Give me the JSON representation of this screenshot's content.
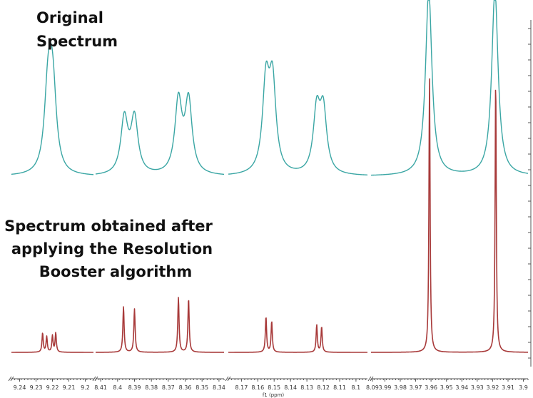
{
  "labels": {
    "original": [
      "Original",
      "Spectrum"
    ],
    "boosted": [
      "Spectrum obtained after",
      "applying the Resolution",
      "Booster algorithm"
    ]
  },
  "colors": {
    "original": "#3aa6a4",
    "boosted": "#a83a3a",
    "axis": "#555555"
  },
  "chart_data": {
    "type": "line",
    "xlabel": "f1 (ppm)",
    "x_reversed": true,
    "segments": [
      {
        "range": [
          9.245,
          9.195
        ],
        "ticks": [
          9.24,
          9.23,
          9.22,
          9.21,
          9.2
        ],
        "tick_labels": [
          "9.24",
          "9.23",
          "9.22",
          "9.21",
          "9.2"
        ]
      },
      {
        "range": [
          8.413,
          8.337
        ],
        "ticks": [
          8.41,
          8.4,
          8.39,
          8.38,
          8.37,
          8.36,
          8.35,
          8.34
        ],
        "tick_labels": [
          "8.41",
          "8.4",
          "8.39",
          "8.38",
          "8.37",
          "8.36",
          "8.35",
          "8.34"
        ]
      },
      {
        "range": [
          8.178,
          8.093
        ],
        "ticks": [
          8.17,
          8.16,
          8.15,
          8.14,
          8.13,
          8.12,
          8.11,
          8.1,
          8.09
        ],
        "tick_labels": [
          "8.17",
          "8.16",
          "8.15",
          "8.14",
          "8.13",
          "8.12",
          "8.11",
          "8.1",
          "8.09"
        ]
      },
      {
        "range": [
          3.999,
          3.897
        ],
        "ticks": [
          3.99,
          3.98,
          3.97,
          3.96,
          3.95,
          3.94,
          3.93,
          3.92,
          3.91,
          3.9
        ],
        "tick_labels": [
          "3.99",
          "3.98",
          "3.97",
          "3.96",
          "3.95",
          "3.94",
          "3.93",
          "3.92",
          "3.91",
          "3.9"
        ]
      }
    ],
    "series": [
      {
        "key": "original",
        "lorentzian_width": 0.0025,
        "segment_peaks": [
          [
            [
              9.223,
              0.62
            ],
            [
              9.2195,
              0.64
            ],
            [
              9.221,
              0.3
            ],
            [
              9.2215,
              0.3
            ]
          ],
          [
            [
              8.396,
              0.6
            ],
            [
              8.39,
              0.6
            ],
            [
              8.364,
              0.78
            ],
            [
              8.358,
              0.78
            ]
          ],
          [
            [
              8.155,
              0.95
            ],
            [
              8.151,
              0.95
            ],
            [
              8.124,
              0.66
            ],
            [
              8.12,
              0.66
            ]
          ],
          [
            [
              3.9615,
              2.0
            ],
            [
              3.9185,
              2.0
            ]
          ]
        ]
      },
      {
        "key": "boosted",
        "lorentzian_width": 0.00045,
        "segment_peaks": [
          [
            [
              9.226,
              0.42
            ],
            [
              9.2235,
              0.34
            ],
            [
              9.22,
              0.36
            ],
            [
              9.218,
              0.42
            ]
          ],
          [
            [
              8.3965,
              1.0
            ],
            [
              8.39,
              0.95
            ],
            [
              8.364,
              1.2
            ],
            [
              8.358,
              1.18
            ]
          ],
          [
            [
              8.155,
              0.78
            ],
            [
              8.1515,
              0.68
            ],
            [
              8.124,
              0.6
            ],
            [
              8.121,
              0.56
            ]
          ],
          [
            [
              3.961,
              6.0
            ],
            [
              3.918,
              6.0
            ]
          ]
        ]
      }
    ]
  }
}
